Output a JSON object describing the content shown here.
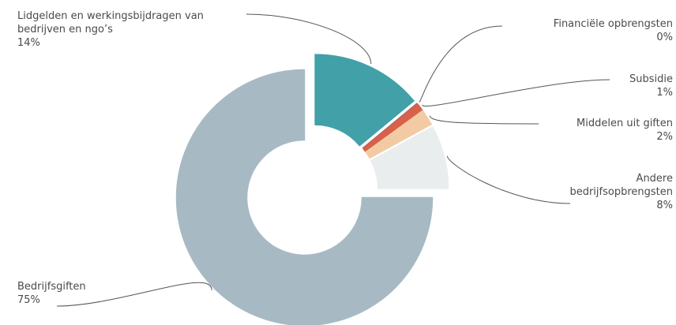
{
  "chart_data": {
    "type": "donut",
    "categories": [
      "Lidgelden en werkingsbijdragen van bedrijven en ngo’s",
      "Financiële opbrengsten",
      "Subsidie",
      "Middelen uit giften",
      "Andere bedrijfsopbrengsten",
      "Bedrijfsgiften"
    ],
    "values": [
      14,
      0,
      1,
      2,
      8,
      75
    ],
    "value_labels": [
      "14%",
      "0%",
      "1%",
      "2%",
      "8%",
      "75%"
    ],
    "colors": [
      "#41a0a8",
      "#4d5661",
      "#d9604a",
      "#f2cba5",
      "#e9edee",
      "#a7bac4"
    ]
  }
}
